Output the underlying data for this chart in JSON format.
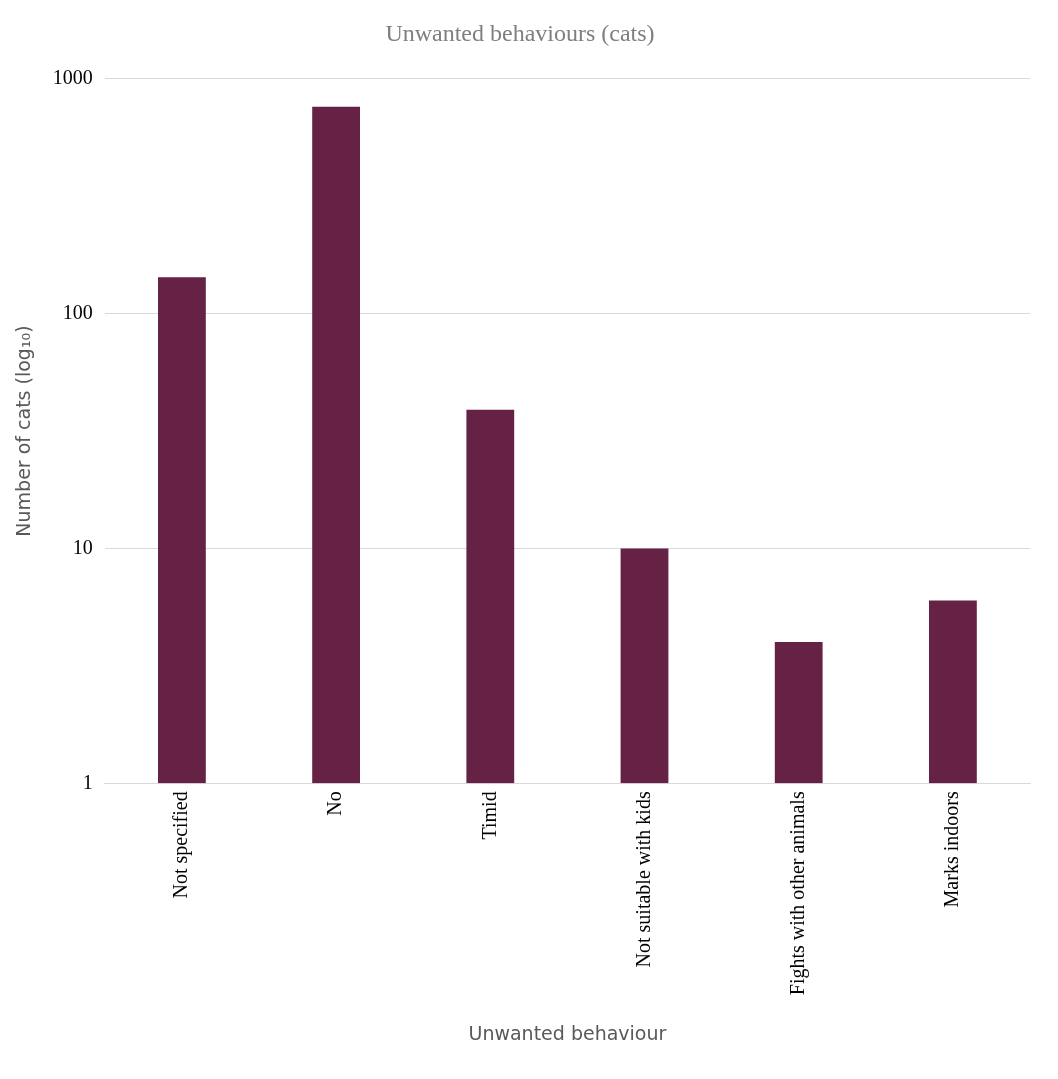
{
  "chart_data": {
    "type": "bar",
    "title": "Unwanted behaviours (cats)",
    "xlabel": "Unwanted behaviour",
    "ylabel": "Number of cats (log₁₀)",
    "categories": [
      "Not specified",
      "No",
      "Timid",
      "Not suitable with kids",
      "Fights with other animals",
      "Marks indoors"
    ],
    "values": [
      143,
      760,
      39,
      10,
      4,
      6
    ],
    "color": "#662244",
    "log": "y",
    "ylim": [
      1,
      1000
    ],
    "yticks": [
      1,
      10,
      100,
      1000
    ],
    "grid": "y",
    "legend": false
  }
}
